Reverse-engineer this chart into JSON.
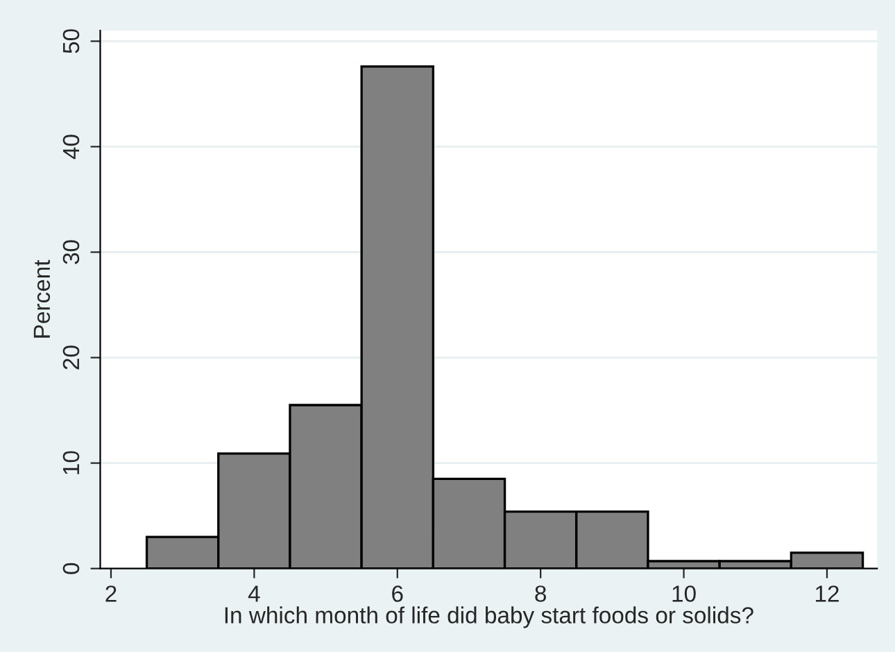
{
  "chart_data": {
    "type": "histogram",
    "xlabel": "In which month of life did baby start foods or solids?",
    "ylabel": "Percent",
    "bins": [
      2.5,
      3.5,
      4.5,
      5.5,
      6.5,
      7.5,
      8.5,
      9.5,
      10.5,
      11.5,
      12.5
    ],
    "values": [
      3.0,
      10.9,
      15.5,
      47.6,
      8.5,
      5.4,
      5.4,
      0.7,
      0.7,
      1.5
    ],
    "color": "#808080",
    "xlim": [
      1.85,
      12.7
    ],
    "xticks": [
      2,
      4,
      6,
      8,
      10,
      12
    ],
    "ylim": [
      0,
      51
    ],
    "yticks": [
      0,
      10,
      20,
      30,
      40,
      50
    ],
    "grid": "y"
  }
}
